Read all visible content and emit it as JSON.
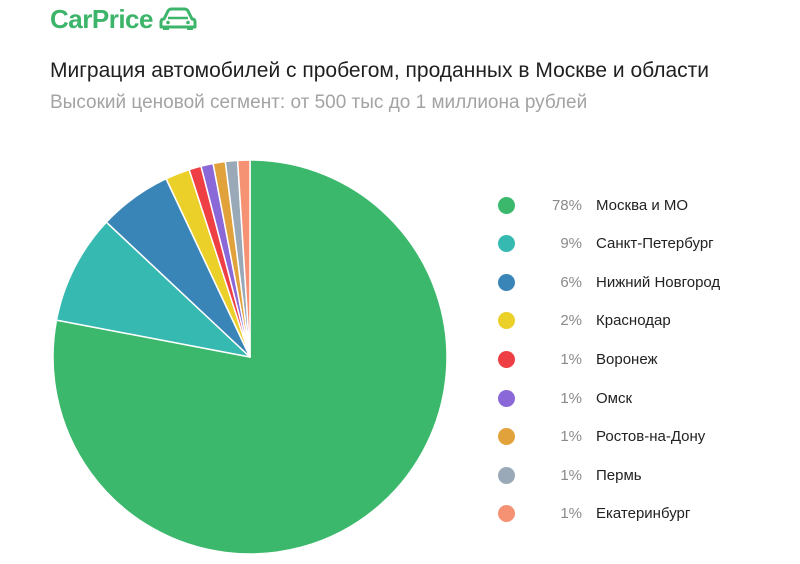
{
  "brand": {
    "name": "CarPrice",
    "color": "#3cb56a",
    "icon": "car-icon"
  },
  "chart_data": {
    "type": "pie",
    "title": "Миграция автомобилей с пробегом, проданных в Москве и области",
    "subtitle": "Высокий ценовой сегмент: от 500 тыс до 1 миллиона рублей",
    "legend_position": "right",
    "slices": [
      {
        "label": "Москва и МО",
        "value": 78,
        "display": "78%",
        "color": "#3cb86c"
      },
      {
        "label": "Санкт-Петербург",
        "value": 9,
        "display": "9%",
        "color": "#36b9b1"
      },
      {
        "label": "Нижний Новгород",
        "value": 6,
        "display": "6%",
        "color": "#3a85b8"
      },
      {
        "label": "Краснодар",
        "value": 2,
        "display": "2%",
        "color": "#ecd02a"
      },
      {
        "label": "Воронеж",
        "value": 1,
        "display": "1%",
        "color": "#ee3f45"
      },
      {
        "label": "Омск",
        "value": 1,
        "display": "1%",
        "color": "#8b68d8"
      },
      {
        "label": "Ростов-на-Дону",
        "value": 1,
        "display": "1%",
        "color": "#e2a23b"
      },
      {
        "label": "Пермь",
        "value": 1,
        "display": "1%",
        "color": "#99a9b8"
      },
      {
        "label": "Екатеринбург",
        "value": 1,
        "display": "1%",
        "color": "#f59273"
      }
    ]
  }
}
